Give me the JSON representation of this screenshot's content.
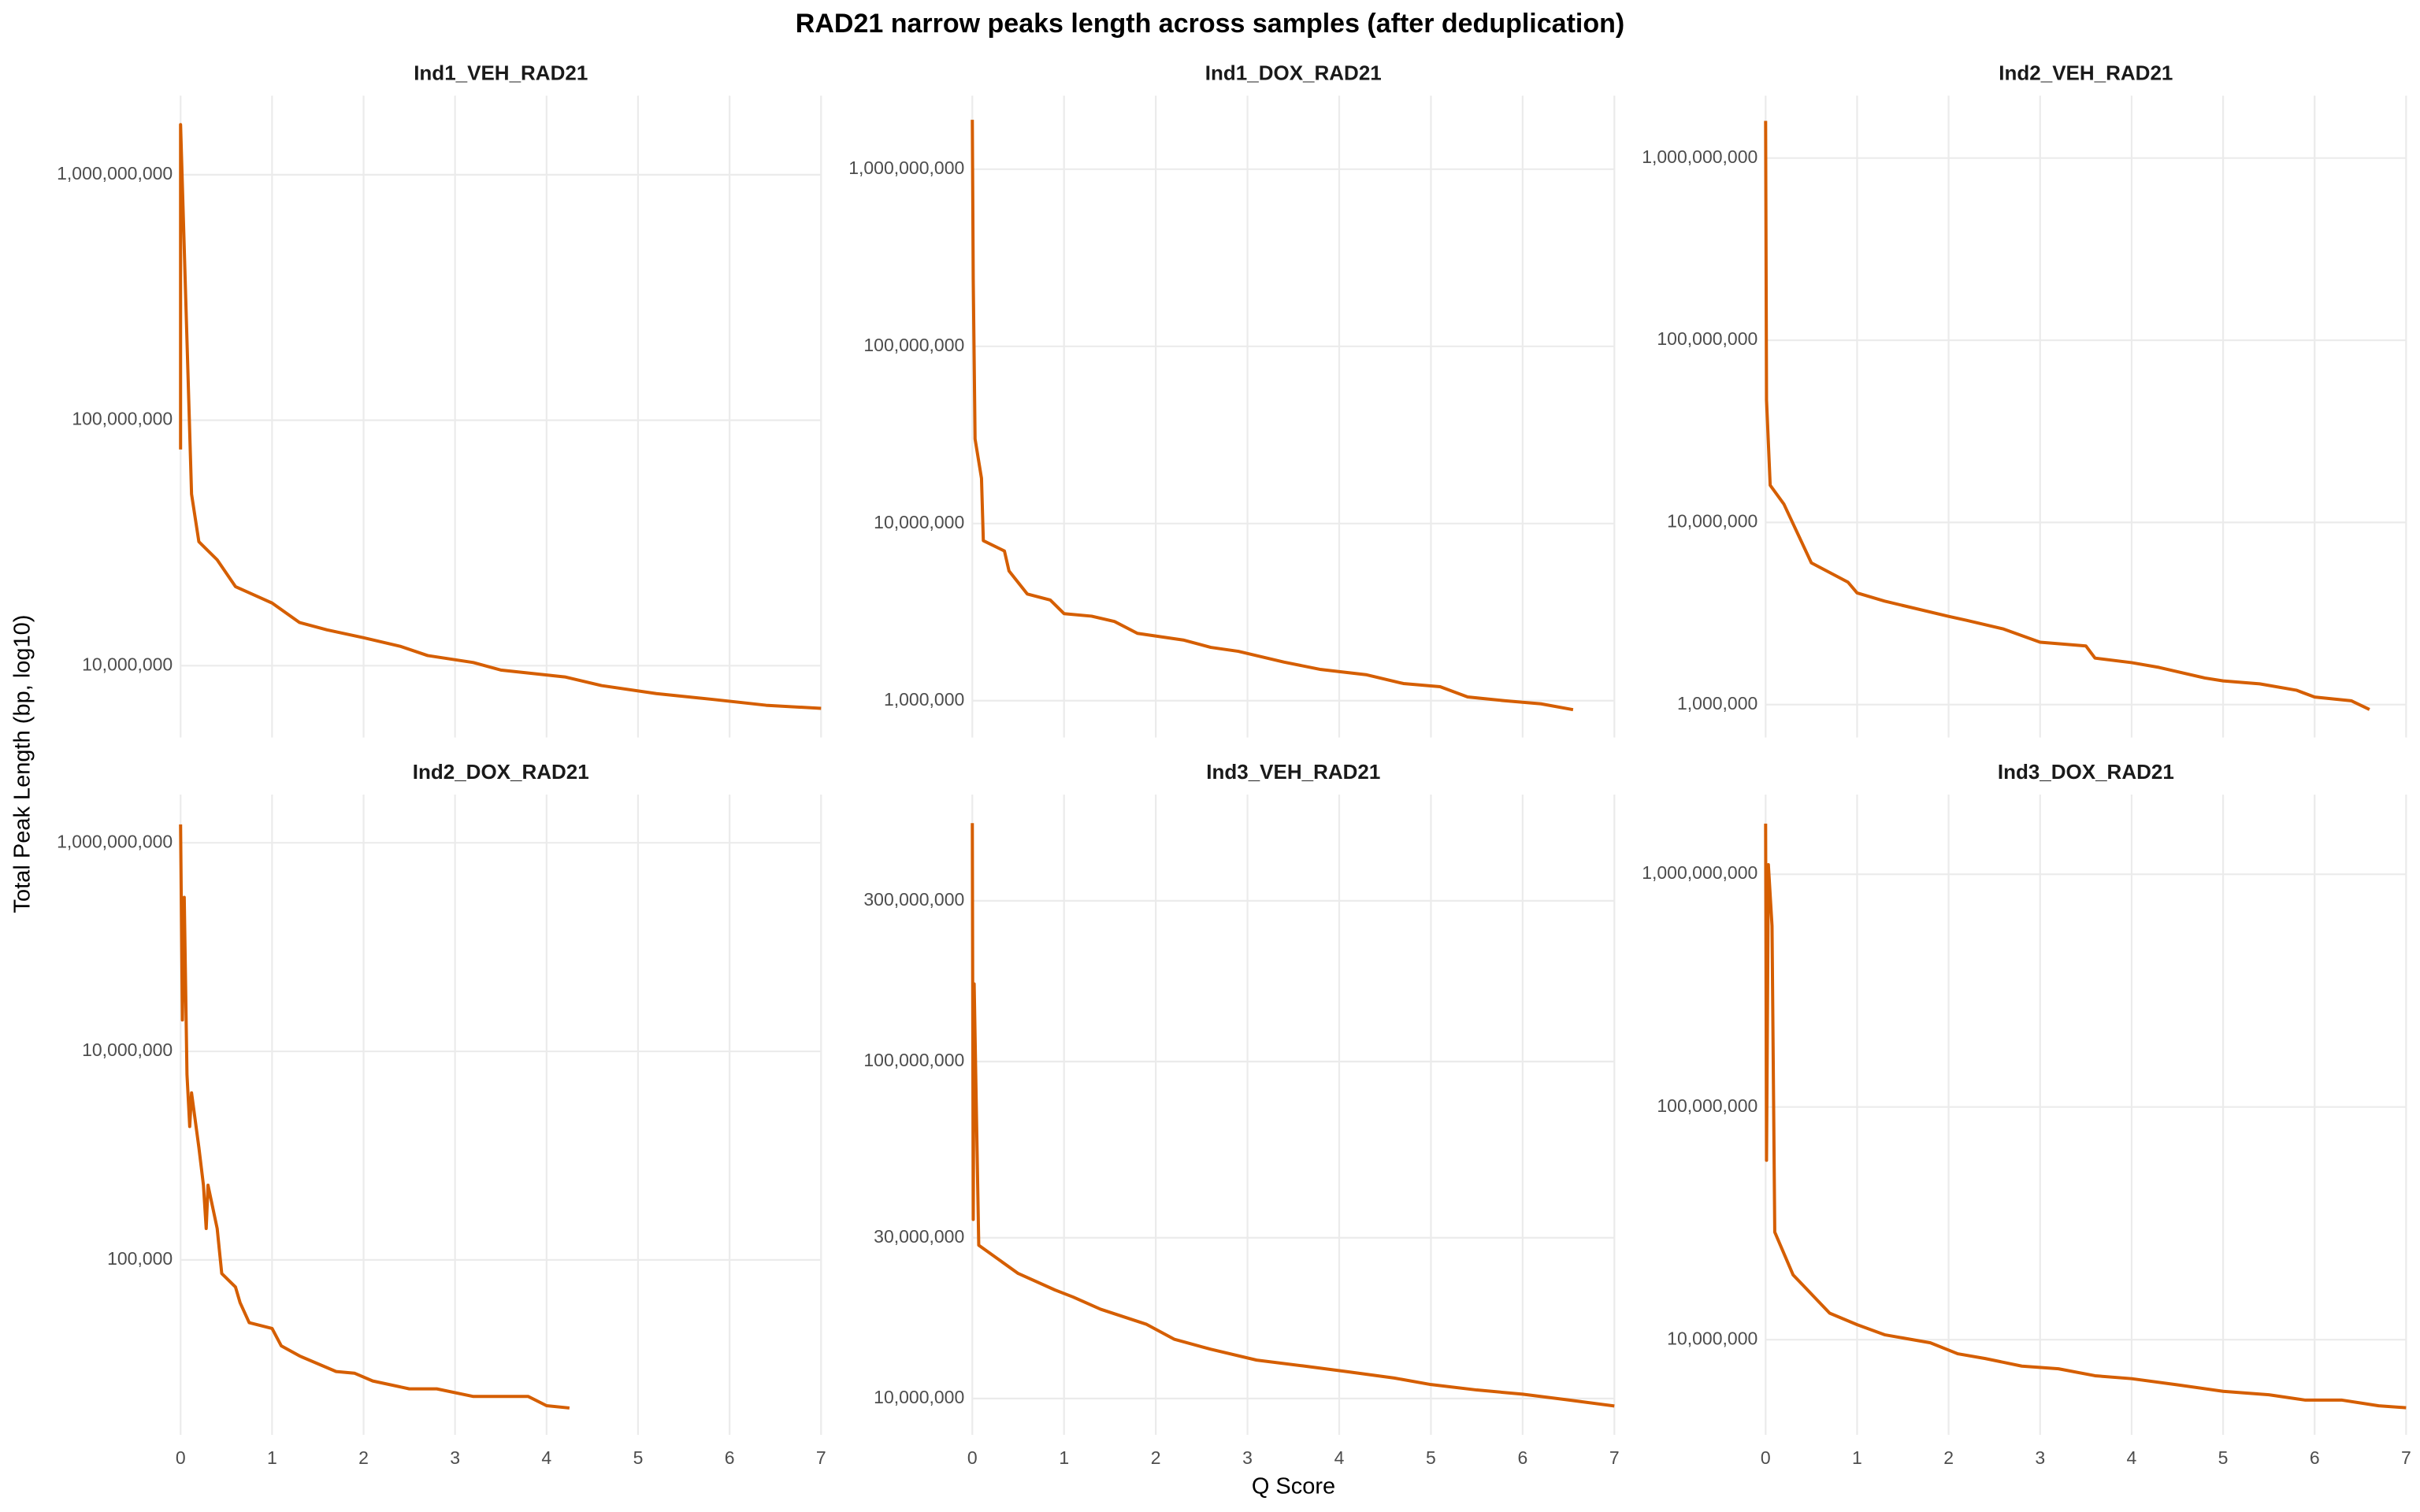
{
  "title": "RAD21 narrow peaks length across samples (after deduplication)",
  "x_label": "Q Score",
  "y_label": "Total Peak Length (bp, log10)",
  "chart_data": [
    {
      "type": "line",
      "title": "Ind1_VEH_RAD21",
      "x": [
        0,
        0,
        0.12,
        0.2,
        0.4,
        0.6,
        1.0,
        1.3,
        1.6,
        2.0,
        2.4,
        2.7,
        3.2,
        3.5,
        4.2,
        4.6,
        5.2,
        5.8,
        6.4,
        7.0
      ],
      "series": [
        {
          "color": "#D55E00",
          "values": [
            76000000,
            1600000000,
            50000000,
            32000000,
            27000000,
            21000000,
            18000000,
            15000000,
            14000000,
            13000000,
            12000000,
            11000000,
            10300000,
            9600000,
            9000000,
            8300000,
            7700000,
            7300000,
            6900000,
            6700000
          ]
        }
      ],
      "xlim": [
        0,
        7
      ],
      "xticks": [
        0,
        1,
        2,
        3,
        4,
        5,
        6,
        7
      ],
      "ylim": [
        5100000,
        2100000000
      ],
      "yticks": [
        {
          "value": 10000000,
          "label": "10,000,000"
        },
        {
          "value": 100000000,
          "label": "100,000,000"
        },
        {
          "value": 1000000000,
          "label": "1,000,000,000"
        }
      ],
      "log_y": true,
      "grid": true
    },
    {
      "type": "line",
      "title": "Ind1_DOX_RAD21",
      "x": [
        0,
        0.01,
        0.03,
        0.1,
        0.12,
        0.35,
        0.4,
        0.6,
        0.85,
        1.0,
        1.3,
        1.55,
        1.8,
        2.3,
        2.6,
        2.9,
        3.4,
        3.8,
        4.3,
        4.7,
        5.1,
        5.4,
        5.8,
        6.2,
        6.55
      ],
      "series": [
        {
          "color": "#D55E00",
          "values": [
            1900000000,
            240000000,
            30000000,
            18000000,
            8000000,
            7000000,
            5400000,
            4000000,
            3700000,
            3100000,
            3000000,
            2800000,
            2400000,
            2200000,
            2000000,
            1900000,
            1650000,
            1500000,
            1400000,
            1250000,
            1200000,
            1050000,
            1000000,
            960000,
            890000
          ]
        }
      ],
      "xlim": [
        0,
        7
      ],
      "xticks": [
        0,
        1,
        2,
        3,
        4,
        5,
        6,
        7
      ],
      "ylim": [
        620000,
        2600000000
      ],
      "yticks": [
        {
          "value": 1000000,
          "label": "1,000,000"
        },
        {
          "value": 10000000,
          "label": "10,000,000"
        },
        {
          "value": 100000000,
          "label": "100,000,000"
        },
        {
          "value": 1000000000,
          "label": "1,000,000,000"
        }
      ],
      "log_y": true,
      "grid": true
    },
    {
      "type": "line",
      "title": "Ind2_VEH_RAD21",
      "x": [
        0,
        0.01,
        0.05,
        0.2,
        0.5,
        0.9,
        1.0,
        1.3,
        1.5,
        2.0,
        2.2,
        2.6,
        3.0,
        3.5,
        3.6,
        4.0,
        4.3,
        4.8,
        5.0,
        5.4,
        5.8,
        6.0,
        6.4,
        6.6
      ],
      "series": [
        {
          "color": "#D55E00",
          "values": [
            1600000000,
            47000000,
            16000000,
            12600000,
            6000000,
            4700000,
            4100000,
            3700000,
            3500000,
            3050000,
            2900000,
            2600000,
            2200000,
            2100000,
            1800000,
            1700000,
            1600000,
            1400000,
            1350000,
            1300000,
            1200000,
            1100000,
            1050000,
            940000
          ]
        }
      ],
      "xlim": [
        0,
        7
      ],
      "xticks": [
        0,
        1,
        2,
        3,
        4,
        5,
        6,
        7
      ],
      "ylim": [
        660000,
        2200000000
      ],
      "yticks": [
        {
          "value": 1000000,
          "label": "1,000,000"
        },
        {
          "value": 10000000,
          "label": "10,000,000"
        },
        {
          "value": 100000000,
          "label": "100,000,000"
        },
        {
          "value": 1000000000,
          "label": "1,000,000,000"
        }
      ],
      "log_y": true,
      "grid": true
    },
    {
      "type": "line",
      "title": "Ind2_DOX_RAD21",
      "x": [
        0,
        0.02,
        0.04,
        0.07,
        0.1,
        0.12,
        0.2,
        0.25,
        0.28,
        0.3,
        0.4,
        0.45,
        0.6,
        0.65,
        0.75,
        1.0,
        1.1,
        1.3,
        1.7,
        1.9,
        2.1,
        2.5,
        2.8,
        3.2,
        3.8,
        4.0,
        4.25
      ],
      "series": [
        {
          "color": "#D55E00",
          "values": [
            1500000000,
            20000000,
            300000000,
            6000000,
            1900000,
            4000000,
            1200000,
            520000,
            200000,
            520000,
            200000,
            74000,
            55000,
            39000,
            25000,
            22000,
            15000,
            12000,
            8500,
            8200,
            6900,
            5800,
            5800,
            4900,
            4900,
            4000,
            3800
          ]
        }
      ],
      "xlim": [
        0,
        7
      ],
      "xticks": [
        0,
        1,
        2,
        3,
        4,
        5,
        6,
        7
      ],
      "ylim": [
        2100,
        2900000000
      ],
      "yticks": [
        {
          "value": 100000,
          "label": "100,000"
        },
        {
          "value": 10000000,
          "label": "10,000,000"
        },
        {
          "value": 1000000000,
          "label": "1,000,000,000"
        }
      ],
      "log_y": true,
      "grid": true
    },
    {
      "type": "line",
      "title": "Ind3_VEH_RAD21",
      "x": [
        0,
        0.01,
        0.02,
        0.07,
        0.5,
        0.9,
        1.1,
        1.4,
        1.9,
        2.2,
        2.6,
        3.1,
        3.6,
        4.1,
        4.6,
        5.0,
        5.5,
        6.0,
        6.5,
        7.0
      ],
      "series": [
        {
          "color": "#D55E00",
          "values": [
            510000000,
            34000000,
            170000000,
            28500000,
            23500000,
            21000000,
            20000000,
            18400000,
            16600000,
            15000000,
            14000000,
            13000000,
            12500000,
            12000000,
            11500000,
            11000000,
            10600000,
            10300000,
            9900000,
            9500000
          ]
        }
      ],
      "xlim": [
        0,
        7
      ],
      "xticks": [
        0,
        1,
        2,
        3,
        4,
        5,
        6,
        7
      ],
      "ylim": [
        7800000,
        620000000
      ],
      "yticks": [
        {
          "value": 10000000,
          "label": "10,000,000"
        },
        {
          "value": 30000000,
          "label": "30,000,000"
        },
        {
          "value": 100000000,
          "label": "100,000,000"
        },
        {
          "value": 300000000,
          "label": "300,000,000"
        }
      ],
      "log_y": true,
      "grid": true
    },
    {
      "type": "line",
      "title": "Ind3_DOX_RAD21",
      "x": [
        0,
        0.01,
        0.03,
        0.07,
        0.1,
        0.3,
        0.7,
        1.0,
        1.3,
        1.8,
        2.1,
        2.4,
        2.8,
        3.2,
        3.6,
        4.0,
        4.5,
        5.0,
        5.5,
        5.9,
        6.3,
        6.7,
        7.0
      ],
      "series": [
        {
          "color": "#D55E00",
          "values": [
            1650000000,
            59000000,
            1100000000,
            600000000,
            29000000,
            19000000,
            13000000,
            11600000,
            10500000,
            9700000,
            8700000,
            8300000,
            7700000,
            7500000,
            7000000,
            6800000,
            6400000,
            6000000,
            5800000,
            5500000,
            5500000,
            5200000,
            5100000
          ]
        }
      ],
      "xlim": [
        0,
        7
      ],
      "xticks": [
        0,
        1,
        2,
        3,
        4,
        5,
        6,
        7
      ],
      "ylim": [
        3900000,
        2200000000
      ],
      "yticks": [
        {
          "value": 10000000,
          "label": "10,000,000"
        },
        {
          "value": 100000000,
          "label": "100,000,000"
        },
        {
          "value": 1000000000,
          "label": "1,000,000,000"
        }
      ],
      "log_y": true,
      "grid": true
    }
  ]
}
